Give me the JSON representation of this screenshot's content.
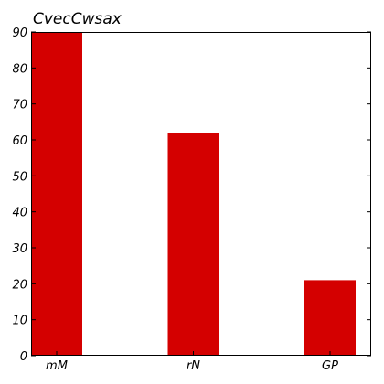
{
  "chart_data": {
    "type": "bar",
    "title": "CvecCwsax",
    "xlabel": "",
    "ylabel": "",
    "categories": [
      "mM",
      "rN",
      "GP"
    ],
    "values": [
      90,
      62,
      21
    ],
    "ylim": [
      0,
      90
    ],
    "yticks": [
      0,
      10,
      20,
      30,
      40,
      50,
      60,
      70,
      80,
      90
    ],
    "grid": false,
    "legend": "none",
    "bar_color": "#d40000"
  }
}
